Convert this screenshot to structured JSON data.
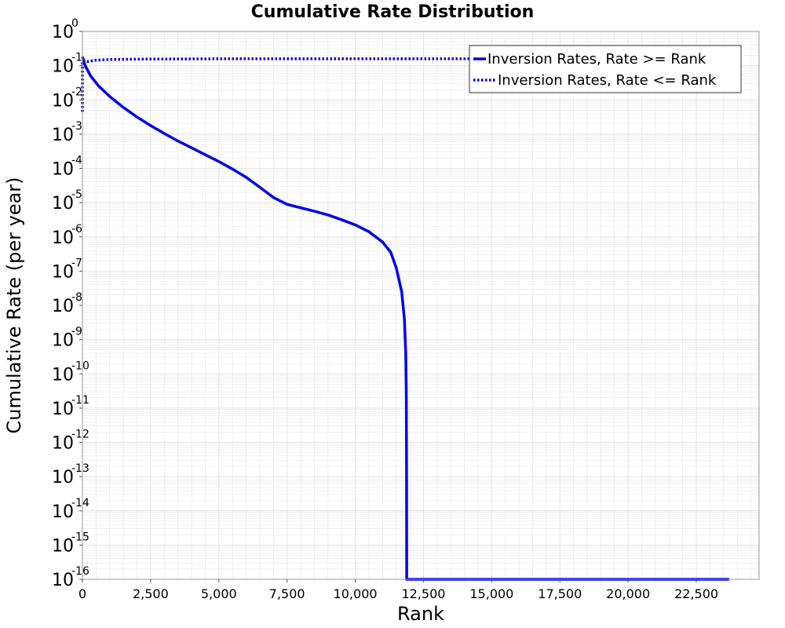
{
  "chart_data": {
    "type": "line",
    "title": "Cumulative Rate Distribution",
    "xlabel": "Rank",
    "ylabel": "Cumulative Rate (per year)",
    "xlim": [
      0,
      24800
    ],
    "x_ticks": [
      0,
      2500,
      5000,
      7500,
      10000,
      12500,
      15000,
      17500,
      20000,
      22500
    ],
    "x_tick_labels": [
      "0",
      "2,500",
      "5,000",
      "7,500",
      "10,000",
      "12,500",
      "15,000",
      "17,500",
      "20,000",
      "22,500"
    ],
    "y_scale": "log",
    "ylim_exponent": [
      -16,
      0
    ],
    "y_tick_base": "10",
    "y_tick_exponents": [
      "0",
      "-1",
      "-2",
      "-3",
      "-4",
      "-5",
      "-6",
      "-7",
      "-8",
      "-9",
      "-10",
      "-11",
      "-12",
      "-13",
      "-14",
      "-15",
      "-16"
    ],
    "grid": true,
    "legend_position": "top-right",
    "colors": {
      "series": "#0000ee",
      "grid": "#e4e4e4",
      "frame": "#9a9a9a",
      "legend_border": "#333333"
    },
    "series": [
      {
        "name": "Inversion Rates, Rate >= Rank",
        "style": "solid",
        "points": [
          [
            0,
            -0.74
          ],
          [
            100,
            -1.0
          ],
          [
            300,
            -1.3
          ],
          [
            600,
            -1.6
          ],
          [
            1000,
            -1.9
          ],
          [
            1500,
            -2.22
          ],
          [
            2000,
            -2.5
          ],
          [
            2500,
            -2.75
          ],
          [
            3000,
            -2.98
          ],
          [
            3500,
            -3.2
          ],
          [
            4000,
            -3.4
          ],
          [
            4500,
            -3.6
          ],
          [
            5000,
            -3.8
          ],
          [
            5500,
            -4.02
          ],
          [
            6000,
            -4.26
          ],
          [
            6500,
            -4.55
          ],
          [
            7000,
            -4.85
          ],
          [
            7500,
            -5.05
          ],
          [
            8000,
            -5.15
          ],
          [
            8500,
            -5.25
          ],
          [
            9000,
            -5.36
          ],
          [
            9500,
            -5.5
          ],
          [
            10000,
            -5.65
          ],
          [
            10500,
            -5.85
          ],
          [
            11000,
            -6.15
          ],
          [
            11300,
            -6.45
          ],
          [
            11500,
            -6.9
          ],
          [
            11700,
            -7.6
          ],
          [
            11800,
            -8.4
          ],
          [
            11850,
            -9.4
          ],
          [
            11870,
            -10.6
          ],
          [
            11880,
            -13.0
          ],
          [
            11885,
            -16.0
          ],
          [
            23700,
            -16.0
          ]
        ]
      },
      {
        "name": "Inversion Rates, Rate <= Rank",
        "style": "dotted",
        "points": [
          [
            0,
            -2.35
          ],
          [
            0,
            -0.92
          ],
          [
            50,
            -0.85
          ],
          [
            200,
            -0.88
          ],
          [
            500,
            -0.84
          ],
          [
            1000,
            -0.82
          ],
          [
            2000,
            -0.81
          ],
          [
            5000,
            -0.8
          ],
          [
            10000,
            -0.8
          ],
          [
            15000,
            -0.8
          ],
          [
            20000,
            -0.8
          ],
          [
            23700,
            -0.8
          ]
        ]
      }
    ]
  }
}
